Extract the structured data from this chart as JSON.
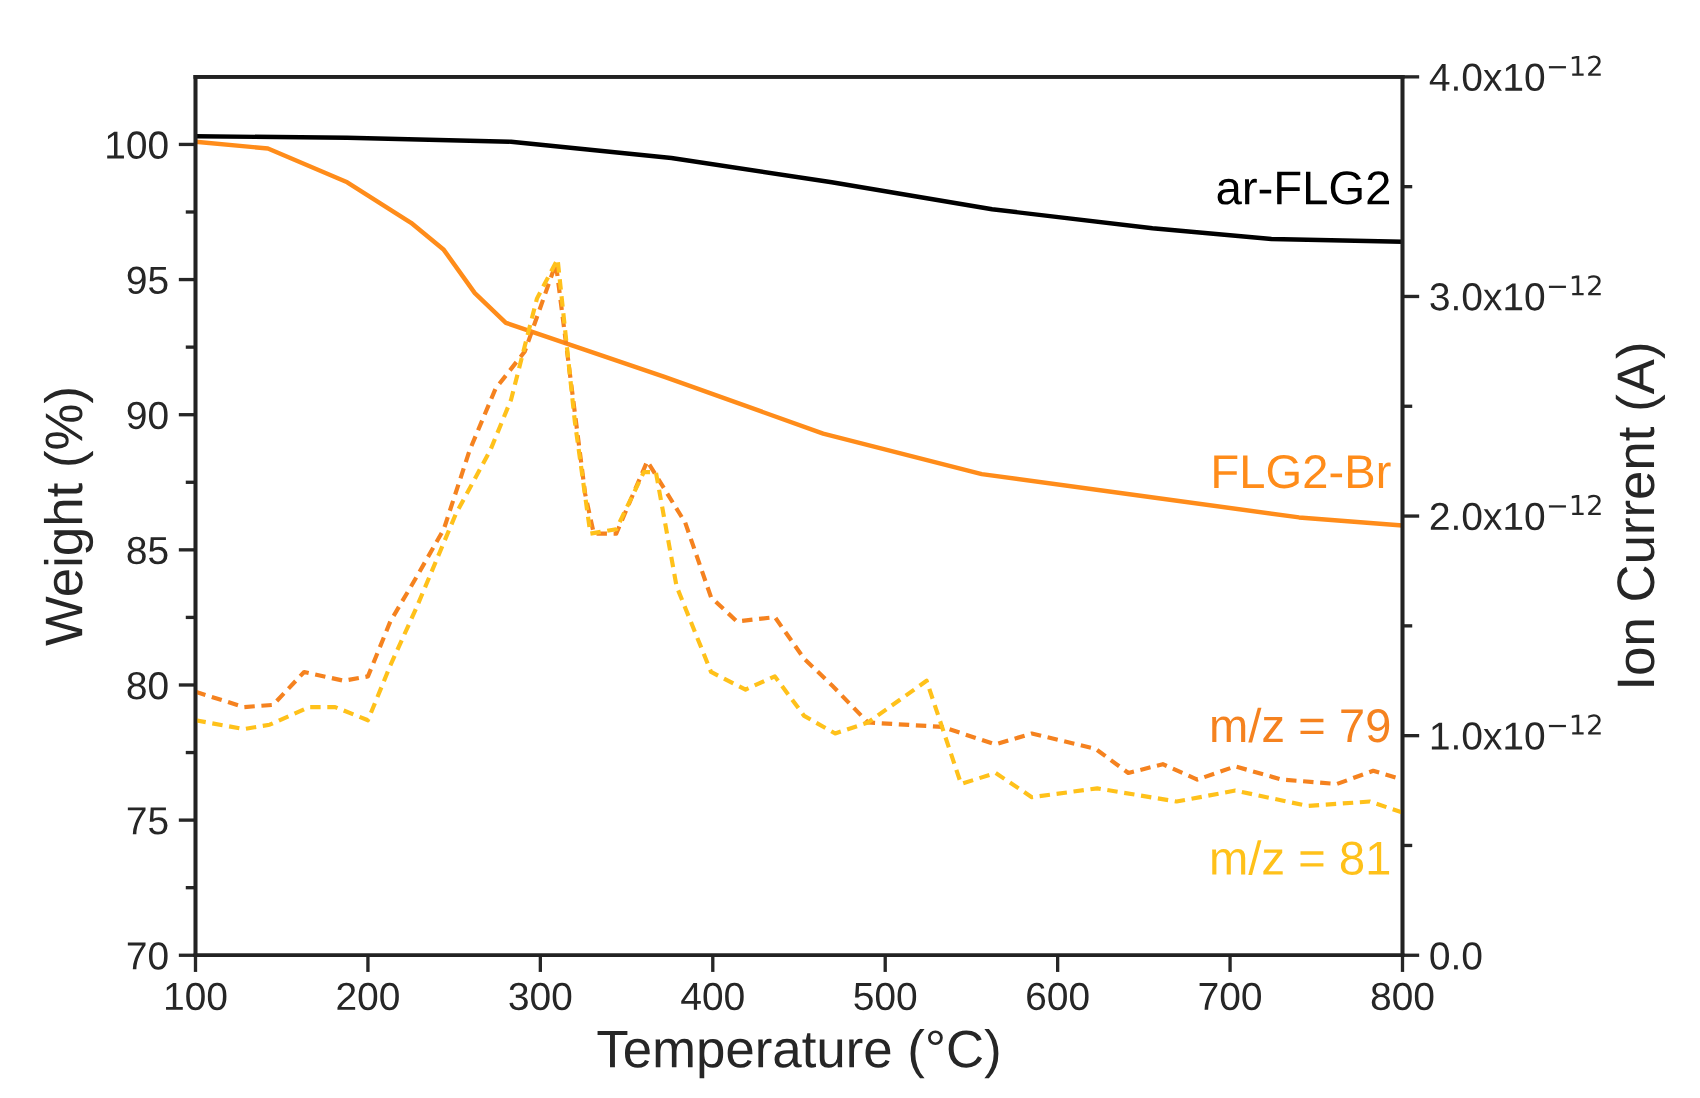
{
  "chart_data": {
    "type": "line",
    "xlabel": "Temperature (°C)",
    "ylabel": "Weight (%)",
    "y2label": "Ion Current (A)",
    "xlim": [
      100,
      800
    ],
    "xticks": [
      100,
      200,
      300,
      400,
      500,
      600,
      700,
      800
    ],
    "ylim": [
      70,
      102.5
    ],
    "yticks": [
      70,
      75,
      80,
      85,
      90,
      95,
      100
    ],
    "y2lim": [
      0,
      4e-12
    ],
    "y2ticks": [
      {
        "value": 0,
        "label": "0.0"
      },
      {
        "value": 1e-12,
        "label": "1.0x10$^{−12}$"
      },
      {
        "value": 2e-12,
        "label": "2.0x10$^{−12}$"
      },
      {
        "value": 3e-12,
        "label": "3.0x10$^{−12}$"
      },
      {
        "value": 4e-12,
        "label": "4.0x10$^{−12}$"
      }
    ],
    "grid": false,
    "legend": false,
    "series": [
      {
        "name": "ar-FLG2",
        "color": "#000000",
        "line_style": "solid",
        "x": [
          100,
          188,
          283,
          376,
          469,
          562,
          655,
          724,
          800
        ],
        "values": [
          100.3,
          100.25,
          100.1,
          99.5,
          98.6,
          97.6,
          96.9,
          96.5,
          96.4
        ]
      },
      {
        "name": "FLG2-Br",
        "color": "#ff8c1a",
        "line_style": "solid",
        "x": [
          100,
          142,
          188,
          225,
          244,
          262,
          280,
          326,
          372,
          464,
          556,
          648,
          740,
          800
        ],
        "values": [
          100.1,
          99.85,
          98.6,
          97.1,
          96.1,
          94.5,
          93.4,
          92.4,
          91.4,
          89.3,
          87.8,
          87.0,
          86.2,
          85.9
        ]
      },
      {
        "name": "m/z = 79",
        "color": "#f5821f",
        "line_style": "dotted",
        "axis": "y2",
        "x": [
          100,
          128,
          145,
          163,
          186,
          200,
          213,
          228,
          244,
          259,
          274,
          291,
          309,
          326,
          331,
          344,
          362,
          384,
          399,
          414,
          436,
          453,
          469,
          490,
          533,
          564,
          585,
          622,
          641,
          661,
          681,
          703,
          730,
          762,
          783,
          800
        ],
        "values": [
          1.2e-12,
          1.13e-12,
          1.14e-12,
          1.29e-12,
          1.25e-12,
          1.27e-12,
          1.52e-12,
          1.72e-12,
          1.94e-12,
          2.3e-12,
          2.58e-12,
          2.75e-12,
          3.15e-12,
          2.1e-12,
          1.92e-12,
          1.92e-12,
          2.25e-12,
          1.97e-12,
          1.63e-12,
          1.52e-12,
          1.54e-12,
          1.35e-12,
          1.23e-12,
          1.06e-12,
          1.04e-12,
          9.6e-13,
          1.01e-12,
          9.4e-13,
          8.3e-13,
          8.7e-13,
          8e-13,
          8.6e-13,
          8e-13,
          7.8e-13,
          8.4e-13,
          8e-13
        ]
      },
      {
        "name": "m/z = 81",
        "color": "#ffc11a",
        "line_style": "dotted",
        "axis": "y2",
        "x": [
          100,
          128,
          143,
          166,
          181,
          200,
          213,
          228,
          251,
          271,
          283,
          298,
          310,
          320,
          329,
          344,
          360,
          367,
          379,
          399,
          419,
          436,
          453,
          471,
          490,
          524,
          544,
          564,
          585,
          623,
          669,
          703,
          745,
          781,
          800
        ],
        "values": [
          1.07e-12,
          1.03e-12,
          1.05e-12,
          1.13e-12,
          1.13e-12,
          1.07e-12,
          1.32e-12,
          1.58e-12,
          2.01e-12,
          2.3e-12,
          2.53e-12,
          2.99e-12,
          3.17e-12,
          2.43e-12,
          1.92e-12,
          1.94e-12,
          2.2e-12,
          2.2e-12,
          1.68e-12,
          1.29e-12,
          1.21e-12,
          1.27e-12,
          1.09e-12,
          1.01e-12,
          1.06e-12,
          1.25e-12,
          7.8e-13,
          8.3e-13,
          7.2e-13,
          7.6e-13,
          7e-13,
          7.5e-13,
          6.8e-13,
          7e-13,
          6.5e-13
        ]
      }
    ]
  }
}
